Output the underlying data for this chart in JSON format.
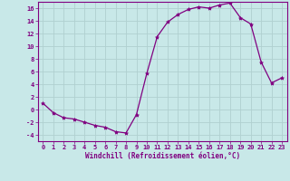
{
  "x": [
    0,
    1,
    2,
    3,
    4,
    5,
    6,
    7,
    8,
    9,
    10,
    11,
    12,
    13,
    14,
    15,
    16,
    17,
    18,
    19,
    20,
    21,
    22,
    23
  ],
  "y": [
    1.0,
    -0.5,
    -1.3,
    -1.5,
    -2.0,
    -2.5,
    -2.8,
    -3.5,
    -3.7,
    -0.8,
    5.7,
    11.5,
    13.8,
    15.0,
    15.8,
    16.2,
    16.0,
    16.5,
    16.8,
    14.5,
    13.5,
    7.5,
    4.2,
    5.0
  ],
  "line_color": "#800080",
  "marker": "*",
  "marker_size": 3,
  "bg_color": "#c8e8e8",
  "grid_color": "#b0d0d0",
  "xlabel": "Windchill (Refroidissement éolien,°C)",
  "ylim": [
    -5,
    17
  ],
  "xlim": [
    -0.5,
    23.5
  ],
  "yticks": [
    -4,
    -2,
    0,
    2,
    4,
    6,
    8,
    10,
    12,
    14,
    16
  ],
  "xticks": [
    0,
    1,
    2,
    3,
    4,
    5,
    6,
    7,
    8,
    9,
    10,
    11,
    12,
    13,
    14,
    15,
    16,
    17,
    18,
    19,
    20,
    21,
    22,
    23
  ],
  "tick_color": "#800080",
  "label_color": "#800080",
  "spine_color": "#800080"
}
